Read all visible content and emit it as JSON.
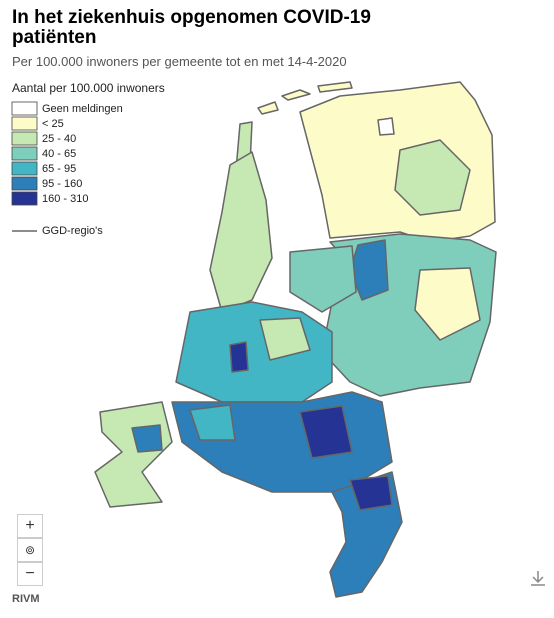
{
  "header": {
    "title": "In het ziekenhuis opgenomen COVID-19 patiënten",
    "subtitle": "Per 100.000 inwoners per gemeente tot en met 14-4-2020"
  },
  "legend": {
    "title": "Aantal per 100.000 inwoners",
    "items": [
      {
        "label": "Geen meldingen",
        "color": "#ffffff"
      },
      {
        "label": "< 25",
        "color": "#fdfcc9"
      },
      {
        "label": "25 - 40",
        "color": "#c6e8b3"
      },
      {
        "label": "40 - 65",
        "color": "#7fcdbb"
      },
      {
        "label": "65 - 95",
        "color": "#42b6c4"
      },
      {
        "label": "95 - 160",
        "color": "#2c7fb8"
      },
      {
        "label": "160 - 310",
        "color": "#253494"
      }
    ],
    "border_label": "GGD-regio's"
  },
  "controls": {
    "zoom_in": "+",
    "reset": "⊚",
    "zoom_out": "−"
  },
  "source": "RIVM"
}
